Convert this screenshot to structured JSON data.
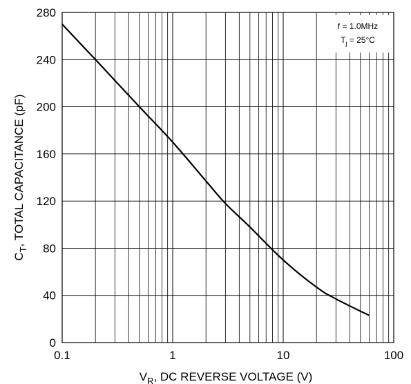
{
  "chart_data": {
    "type": "line",
    "xscale": "log",
    "xlim": [
      0.1,
      100
    ],
    "ylim": [
      0,
      280
    ],
    "grid": true,
    "x_ticks": [
      "0.1",
      "1",
      "10",
      "100"
    ],
    "y_ticks": [
      "0",
      "40",
      "80",
      "120",
      "160",
      "200",
      "240",
      "280"
    ],
    "xlabel": {
      "main": "V",
      "sub": "R",
      "rest": ", DC REVERSE VOLTAGE (V)"
    },
    "ylabel": {
      "main": "C",
      "sub": "T",
      "rest": ", TOTAL CAPACITANCE (pF)"
    },
    "annotations": {
      "line1": "f = 1.0MHz",
      "line2_main": "T",
      "line2_sub": "j",
      "line2_rest": " = 25°C"
    },
    "series": [
      {
        "x": [
          0.1,
          0.2,
          0.5,
          1,
          2,
          3,
          5,
          10,
          20,
          30,
          60
        ],
        "y": [
          270,
          240,
          200,
          170,
          137,
          118,
          98,
          70,
          47,
          37,
          23
        ]
      }
    ]
  }
}
